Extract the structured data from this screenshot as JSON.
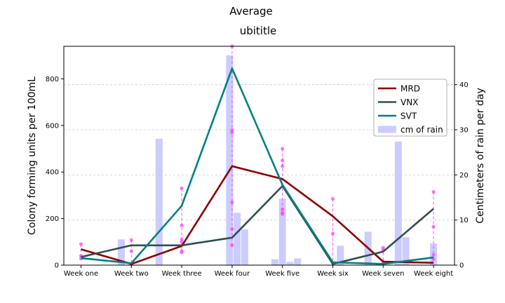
{
  "chart_data": {
    "type": "line",
    "title": "Average",
    "subtitle": "ubititle",
    "xlabel": "",
    "ylabel": "Colony forming units per 100mL",
    "y2label": "Centimeters of rain per day",
    "categories": [
      "Week one",
      "Week two",
      "Week three",
      "Week four",
      "Week five",
      "Week six",
      "Week seven",
      "Week eight"
    ],
    "ylim": [
      0,
      940
    ],
    "yticks": [
      0,
      200,
      400,
      600,
      800
    ],
    "y2lim": [
      0,
      48.5
    ],
    "y2ticks": [
      0,
      10,
      20,
      30,
      40
    ],
    "grid": true,
    "legend_position": "upper right",
    "series": [
      {
        "name": "MRD",
        "color": "#8b0000",
        "values": [
          68,
          5,
          82,
          425,
          370,
          210,
          15,
          10
        ]
      },
      {
        "name": "VNX",
        "color": "#2f4f4f",
        "values": [
          35,
          85,
          85,
          118,
          340,
          5,
          58,
          242
        ]
      },
      {
        "name": "SVT",
        "color": "#008080",
        "values": [
          30,
          8,
          255,
          845,
          345,
          12,
          5,
          33
        ]
      }
    ],
    "rain": {
      "name": "cm of rain",
      "color": "#ccccff",
      "bars": [
        {
          "x": 1.8,
          "value": 5.7
        },
        {
          "x": 2.55,
          "value": 28
        },
        {
          "x": 3.95,
          "value": 46.5
        },
        {
          "x": 4.1,
          "value": 11.6
        },
        {
          "x": 4.25,
          "value": 7.9
        },
        {
          "x": 4.85,
          "value": 1.3
        },
        {
          "x": 5.0,
          "value": 14.7
        },
        {
          "x": 5.15,
          "value": 0.7
        },
        {
          "x": 5.3,
          "value": 1.5
        },
        {
          "x": 6.15,
          "value": 4.3
        },
        {
          "x": 6.7,
          "value": 7.4
        },
        {
          "x": 7.3,
          "value": 27.4
        },
        {
          "x": 7.45,
          "value": 6.2
        },
        {
          "x": 8.0,
          "value": 4.8
        }
      ]
    },
    "samples": {
      "color": "#ff44ff",
      "points": [
        {
          "x": 1,
          "values": [
            90,
            40,
            28
          ]
        },
        {
          "x": 2,
          "values": [
            108,
            60,
            5
          ]
        },
        {
          "x": 3,
          "values": [
            330,
            170,
            110,
            100,
            60,
            55
          ]
        },
        {
          "x": 4,
          "values": [
            940,
            580,
            570,
            270,
            155,
            85
          ]
        },
        {
          "x": 5,
          "values": [
            500,
            450,
            425,
            240,
            225,
            220
          ]
        },
        {
          "x": 6,
          "values": [
            285,
            135,
            10
          ]
        },
        {
          "x": 7,
          "values": [
            75,
            65,
            15
          ]
        },
        {
          "x": 8,
          "values": [
            315,
            165,
            45,
            25
          ]
        }
      ]
    }
  }
}
